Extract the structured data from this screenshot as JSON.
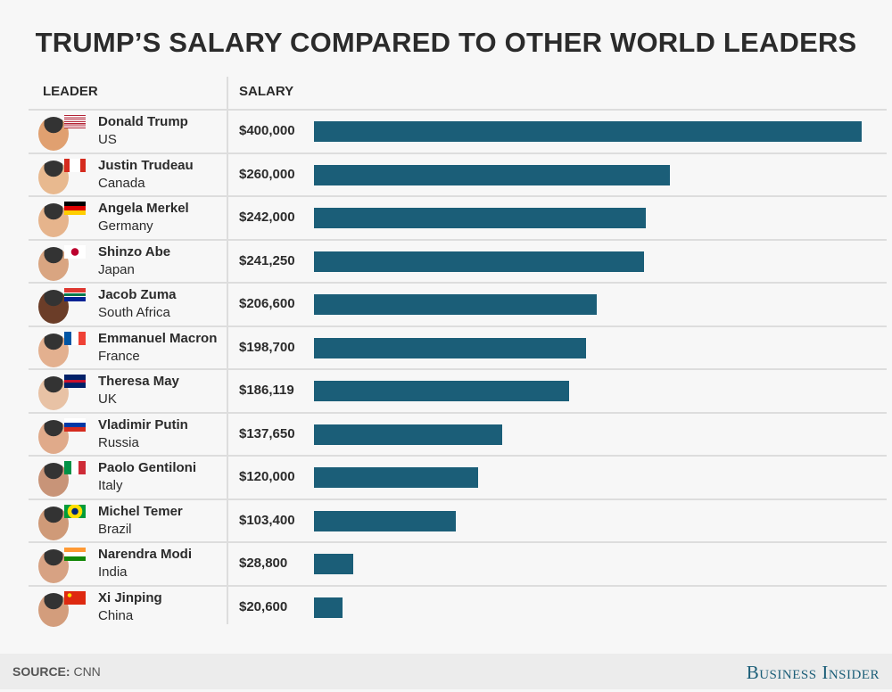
{
  "title": "TRUMP’S SALARY COMPARED TO OTHER WORLD LEADERS",
  "headers": {
    "leader": "LEADER",
    "salary": "SALARY"
  },
  "footer": {
    "source_label": "SOURCE:",
    "source": "CNN",
    "logo": "Business Insider"
  },
  "colors": {
    "bar": "#1b5e78"
  },
  "chart_data": {
    "type": "bar",
    "orientation": "horizontal",
    "xlim": [
      0,
      400000
    ],
    "grid": false,
    "rows": [
      {
        "leader": "Donald Trump",
        "country": "US",
        "salary_label": "$400,000",
        "value": 400000,
        "flag": "us"
      },
      {
        "leader": "Justin Trudeau",
        "country": "Canada",
        "salary_label": "$260,000",
        "value": 260000,
        "flag": "ca"
      },
      {
        "leader": "Angela Merkel",
        "country": "Germany",
        "salary_label": "$242,000",
        "value": 242000,
        "flag": "de"
      },
      {
        "leader": "Shinzo Abe",
        "country": "Japan",
        "salary_label": "$241,250",
        "value": 241250,
        "flag": "jp"
      },
      {
        "leader": "Jacob Zuma",
        "country": "South Africa",
        "salary_label": "$206,600",
        "value": 206600,
        "flag": "za"
      },
      {
        "leader": "Emmanuel Macron",
        "country": "France",
        "salary_label": "$198,700",
        "value": 198700,
        "flag": "fr"
      },
      {
        "leader": "Theresa May",
        "country": "UK",
        "salary_label": "$186,119",
        "value": 186119,
        "flag": "uk"
      },
      {
        "leader": "Vladimir Putin",
        "country": "Russia",
        "salary_label": "$137,650",
        "value": 137650,
        "flag": "ru"
      },
      {
        "leader": "Paolo Gentiloni",
        "country": "Italy",
        "salary_label": "$120,000",
        "value": 120000,
        "flag": "it"
      },
      {
        "leader": "Michel Temer",
        "country": "Brazil",
        "salary_label": "$103,400",
        "value": 103400,
        "flag": "br"
      },
      {
        "leader": "Narendra Modi",
        "country": "India",
        "salary_label": "$28,800",
        "value": 28800,
        "flag": "in"
      },
      {
        "leader": "Xi Jinping",
        "country": "China",
        "salary_label": "$20,600",
        "value": 20600,
        "flag": "cn"
      }
    ]
  }
}
